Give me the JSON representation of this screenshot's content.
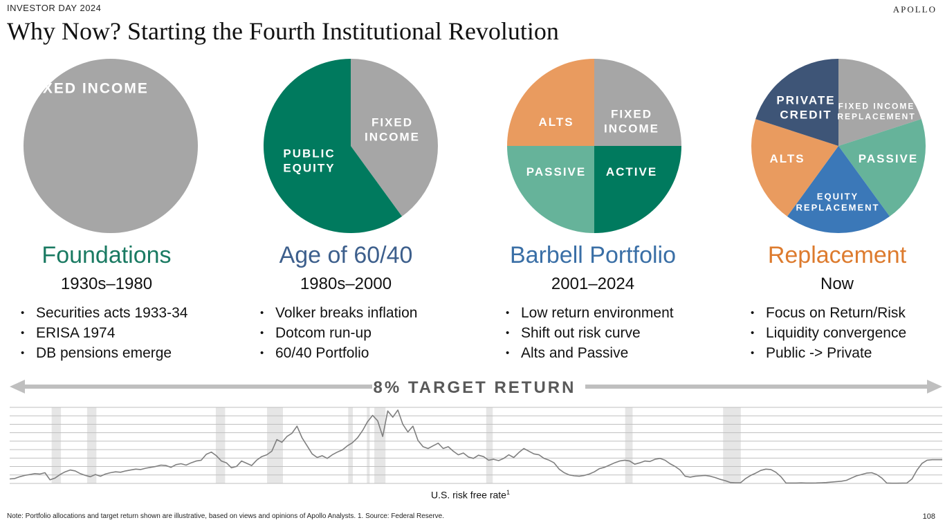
{
  "header": {
    "event_label": "INVESTOR DAY 2024",
    "brand": "APOLLO",
    "title": "Why Now? Starting the Fourth Institutional Revolution"
  },
  "colors": {
    "gray": "#a6a6a6",
    "dark_green": "#007a5e",
    "light_green": "#66b39a",
    "orange": "#e99b5f",
    "navy": "#3e5577",
    "blue": "#3b78b8",
    "title_green": "#1a7a62",
    "title_blue": "#3d5f8c",
    "title_blue_light": "#3a6fa6",
    "title_orange": "#dd7b2e"
  },
  "eras": [
    {
      "name": "Foundations",
      "years": "1930s–1980",
      "name_color": "#1a7a62",
      "bullets": [
        "Securities acts 1933-34",
        "ERISA 1974",
        "DB pensions emerge"
      ],
      "pie": [
        {
          "label": "FIXED INCOME",
          "share": 100,
          "color": "#a6a6a6"
        }
      ]
    },
    {
      "name": "Age of 60/40",
      "years": "1980s–2000",
      "name_color": "#3d5f8c",
      "bullets": [
        "Volker breaks inflation",
        "Dotcom run-up",
        "60/40 Portfolio"
      ],
      "pie": [
        {
          "label": "FIXED INCOME",
          "share": 40,
          "color": "#a6a6a6"
        },
        {
          "label": "PUBLIC EQUITY",
          "share": 60,
          "color": "#007a5e"
        }
      ]
    },
    {
      "name": "Barbell Portfolio",
      "years": "2001–2024",
      "name_color": "#3a6fa6",
      "bullets": [
        "Low return environment",
        "Shift out risk curve",
        "Alts and Passive"
      ],
      "pie": [
        {
          "label": "FIXED INCOME",
          "share": 25,
          "color": "#a6a6a6"
        },
        {
          "label": "ACTIVE",
          "share": 25,
          "color": "#007a5e"
        },
        {
          "label": "PASSIVE",
          "share": 25,
          "color": "#66b39a"
        },
        {
          "label": "ALTS",
          "share": 25,
          "color": "#e99b5f"
        }
      ]
    },
    {
      "name": "Replacement",
      "years": "Now",
      "name_color": "#dd7b2e",
      "bullets": [
        "Focus on Return/Risk",
        "Liquidity convergence",
        "Public -> Private"
      ],
      "pie": [
        {
          "label": "FIXED INCOME REPLACEMENT",
          "share": 20,
          "color": "#a6a6a6"
        },
        {
          "label": "PASSIVE",
          "share": 20,
          "color": "#66b39a"
        },
        {
          "label": "EQUITY REPLACEMENT",
          "share": 20,
          "color": "#3b78b8"
        },
        {
          "label": "ALTS",
          "share": 20,
          "color": "#e99b5f"
        },
        {
          "label": "PRIVATE CREDIT",
          "share": 20,
          "color": "#3e5577"
        }
      ]
    }
  ],
  "target_return": "8% TARGET RETURN",
  "rate_chart": {
    "label": "U.S. risk free rate",
    "label_superscript": "1",
    "line_color": "#7f7f7f",
    "series": [
      1.0,
      1.1,
      1.5,
      1.8,
      2.0,
      2.2,
      2.1,
      2.4,
      0.8,
      1.2,
      2.0,
      2.6,
      3.0,
      2.8,
      2.2,
      1.8,
      1.5,
      2.0,
      1.6,
      2.1,
      2.4,
      2.6,
      2.5,
      2.8,
      3.0,
      3.2,
      3.1,
      3.4,
      3.6,
      3.8,
      4.1,
      4.0,
      3.6,
      4.2,
      4.4,
      4.1,
      4.6,
      5.0,
      5.2,
      6.5,
      7.0,
      6.2,
      5.0,
      4.6,
      3.5,
      3.8,
      5.0,
      4.5,
      4.0,
      5.2,
      6.0,
      6.4,
      7.2,
      9.8,
      9.2,
      10.5,
      11.2,
      12.8,
      10.2,
      8.4,
      6.6,
      5.8,
      6.2,
      5.6,
      6.4,
      7.0,
      7.5,
      8.4,
      9.1,
      10.2,
      11.8,
      13.8,
      15.2,
      14.0,
      10.5,
      16.2,
      14.8,
      16.4,
      13.2,
      11.5,
      12.8,
      9.6,
      8.2,
      7.8,
      8.4,
      9.0,
      7.8,
      8.2,
      7.2,
      6.4,
      6.8,
      5.9,
      5.6,
      6.3,
      6.0,
      5.2,
      5.4,
      5.1,
      5.6,
      6.4,
      5.8,
      6.9,
      7.8,
      7.2,
      6.6,
      6.4,
      5.6,
      5.2,
      4.6,
      3.2,
      2.4,
      1.9,
      1.7,
      1.6,
      1.8,
      2.1,
      2.6,
      3.3,
      3.6,
      4.1,
      4.6,
      5.0,
      5.2,
      5.0,
      4.3,
      4.6,
      5.0,
      4.9,
      5.4,
      5.6,
      5.2,
      4.4,
      3.8,
      3.0,
      1.6,
      1.4,
      1.6,
      1.7,
      1.8,
      1.6,
      1.3,
      0.9,
      0.6,
      0.2,
      0.15,
      0.15,
      1.1,
      1.8,
      2.3,
      2.9,
      3.2,
      3.1,
      2.5,
      1.5,
      0.1,
      0.1,
      0.1,
      0.12,
      0.1,
      0.1,
      0.11,
      0.15,
      0.2,
      0.3,
      0.4,
      0.5,
      0.7,
      1.2,
      1.7,
      2.0,
      2.3,
      2.4,
      2.0,
      1.2,
      0.1,
      0.05,
      0.05,
      0.06,
      0.1,
      1.0,
      3.0,
      4.5,
      5.2,
      5.3,
      5.3,
      5.3
    ],
    "ymax": 17,
    "recessions": [
      [
        0.045,
        0.055
      ],
      [
        0.083,
        0.093
      ],
      [
        0.221,
        0.231
      ],
      [
        0.276,
        0.293
      ],
      [
        0.363,
        0.368
      ],
      [
        0.383,
        0.386
      ],
      [
        0.391,
        0.403
      ],
      [
        0.511,
        0.518
      ],
      [
        0.66,
        0.668
      ],
      [
        0.765,
        0.784
      ]
    ]
  },
  "footnote": "Note: Portfolio allocations and target return shown are illustrative, based on views and opinions of Apollo Analysts. 1. Source: Federal Reserve.",
  "page_number": "108"
}
